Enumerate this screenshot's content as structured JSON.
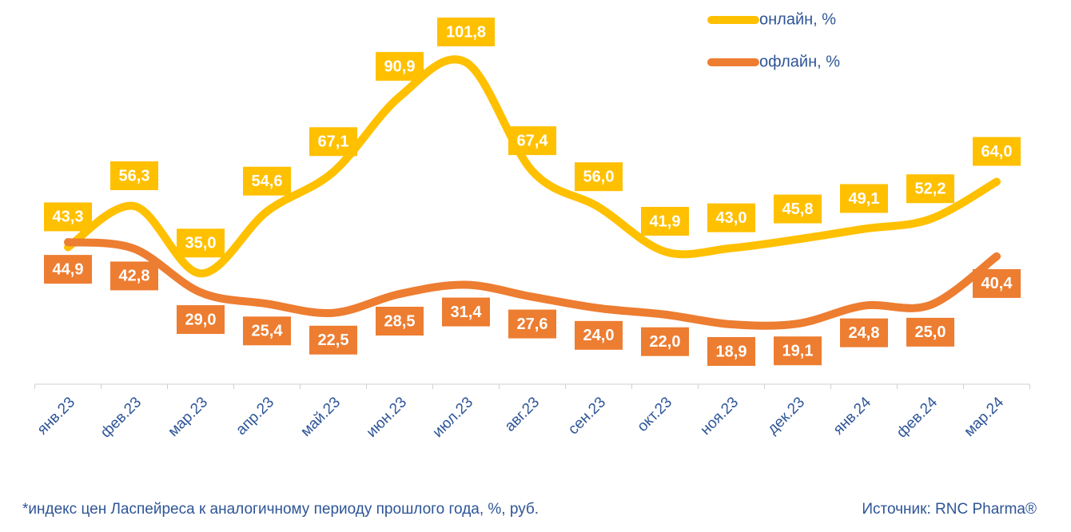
{
  "chart_data": {
    "type": "line",
    "categories": [
      "янв.23",
      "фев.23",
      "мар.23",
      "апр.23",
      "май.23",
      "июн.23",
      "июл.23",
      "авг.23",
      "сен.23",
      "окт.23",
      "ноя.23",
      "дек.23",
      "янв.24",
      "фев.24",
      "мар.24"
    ],
    "series": [
      {
        "name": "онлайн, %",
        "color": "#FFC000",
        "values": [
          43.3,
          56.3,
          35.0,
          54.6,
          67.1,
          90.9,
          101.8,
          67.4,
          56.0,
          41.9,
          43.0,
          45.8,
          49.1,
          52.2,
          64.0
        ],
        "value_labels": [
          "43,3",
          "56,3",
          "35,0",
          "54,6",
          "67,1",
          "90,9",
          "101,8",
          "67,4",
          "56,0",
          "41,9",
          "43,0",
          "45,8",
          "49,1",
          "52,2",
          "64,0"
        ]
      },
      {
        "name": "офлайн, %",
        "color": "#ED7D31",
        "values": [
          44.9,
          42.8,
          29.0,
          25.4,
          22.5,
          28.5,
          31.4,
          27.6,
          24.0,
          22.0,
          18.9,
          19.1,
          24.8,
          25.0,
          40.4
        ],
        "value_labels": [
          "44,9",
          "42,8",
          "29,0",
          "25,4",
          "22,5",
          "28,5",
          "31,4",
          "27,6",
          "24,0",
          "22,0",
          "18,9",
          "19,1",
          "24,8",
          "25,0",
          "40,4"
        ]
      }
    ],
    "footnote": "*индекс цен Ласпейреса к аналогичному периоду прошлого года, %, руб.",
    "source": "Источник: RNC Pharma®"
  }
}
